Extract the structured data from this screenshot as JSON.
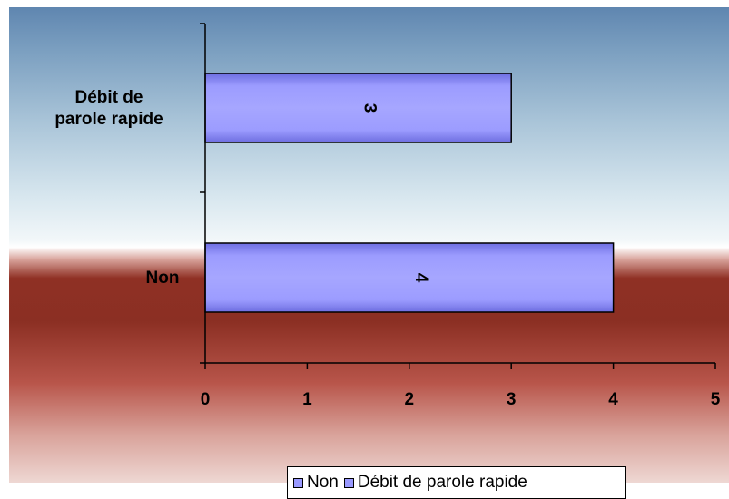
{
  "chart_data": {
    "type": "bar",
    "orientation": "horizontal",
    "categories": [
      "Débit de parole rapide",
      "Non"
    ],
    "category_labels_display": [
      [
        "Débit de",
        "parole rapide"
      ],
      [
        "Non"
      ]
    ],
    "values": [
      3,
      4
    ],
    "data_labels": [
      "3",
      "4"
    ],
    "xlim": [
      0,
      5
    ],
    "xticks": [
      "0",
      "1",
      "2",
      "3",
      "4",
      "5"
    ],
    "grid": false,
    "legend": {
      "position": "bottom",
      "entries": [
        "Non",
        "Débit de parole rapide"
      ]
    },
    "colors": {
      "bar": "#9999ff",
      "bar_border": "#000000"
    }
  }
}
